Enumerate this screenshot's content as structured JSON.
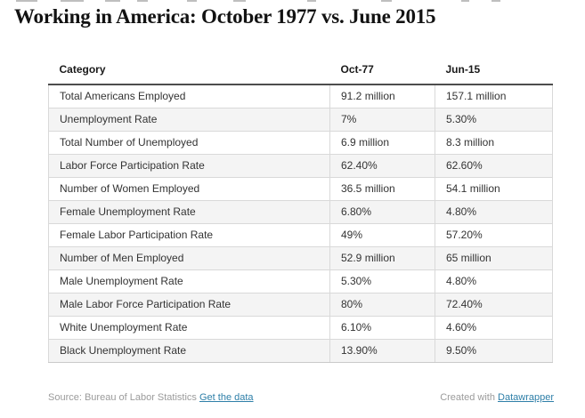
{
  "title": "Working in America: October 1977 vs. June 2015",
  "chart_data": {
    "type": "table",
    "title": "Working in America: October 1977 vs. June 2015",
    "columns": [
      "Category",
      "Oct-77",
      "Jun-15"
    ],
    "rows": [
      [
        "Total Americans Employed",
        "91.2 million",
        "157.1 million"
      ],
      [
        "Unemployment Rate",
        "7%",
        "5.30%"
      ],
      [
        "Total Number of Unemployed",
        "6.9 million",
        "8.3 million"
      ],
      [
        "Labor Force Participation Rate",
        "62.40%",
        "62.60%"
      ],
      [
        "Number of Women Employed",
        "36.5 million",
        "54.1 million"
      ],
      [
        "Female Unemployment Rate",
        "6.80%",
        "4.80%"
      ],
      [
        "Female Labor Participation Rate",
        "49%",
        "57.20%"
      ],
      [
        "Number of Men Employed",
        "52.9 million",
        "65 million"
      ],
      [
        "Male Unemployment Rate",
        "5.30%",
        "4.80%"
      ],
      [
        "Male Labor Force Participation Rate",
        "80%",
        "72.40%"
      ],
      [
        "White Unemployment Rate",
        "6.10%",
        "4.60%"
      ],
      [
        "Black Unemployment Rate",
        "13.90%",
        "9.50%"
      ]
    ],
    "layout_hints": {
      "striped_rows": true,
      "header_rule": "dark",
      "alignment": [
        "left",
        "left",
        "left"
      ]
    }
  },
  "footer": {
    "source_label": "Source: Bureau of Labor Statistics",
    "source_link_label": "Get the data",
    "credit_label": "Created with",
    "credit_link_label": "Datawrapper"
  },
  "colors": {
    "link": "#2e7fa8",
    "header_rule": "#4d4d4d",
    "grid_border": "#d9d9d9",
    "row_alt_bg": "#f4f4f4",
    "body_text": "#333333",
    "muted_text": "#9b9b9b",
    "title_text": "#121212"
  }
}
